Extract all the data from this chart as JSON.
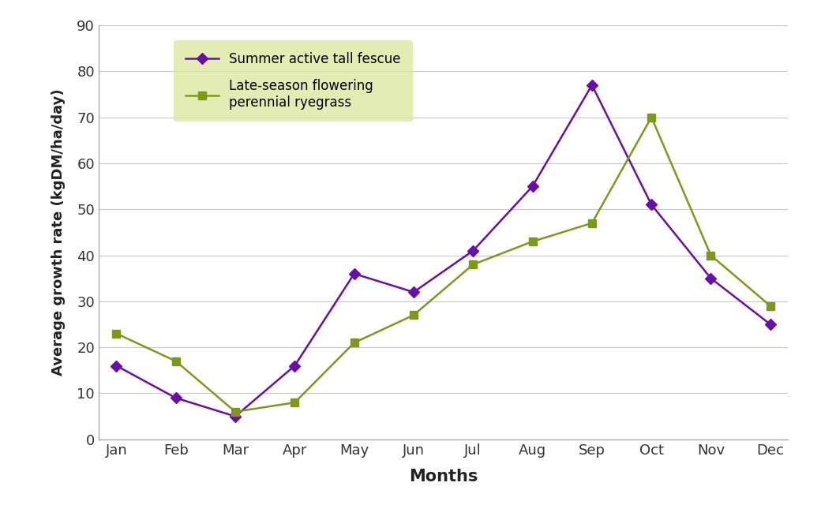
{
  "months": [
    "Jan",
    "Feb",
    "Mar",
    "Apr",
    "May",
    "Jun",
    "Jul",
    "Aug",
    "Sep",
    "Oct",
    "Nov",
    "Dec"
  ],
  "tall_fescue": [
    16,
    9,
    5,
    16,
    36,
    32,
    41,
    55,
    77,
    51,
    35,
    25
  ],
  "perennial_ryegrass": [
    23,
    17,
    6,
    8,
    21,
    27,
    38,
    43,
    47,
    70,
    40,
    29
  ],
  "fescue_color": "#6a0dad",
  "ryegrass_color": "#7b9a1a",
  "fescue_label": "Summer active tall fescue",
  "ryegrass_label": "Late-season flowering\nperennial ryegrass",
  "xlabel": "Months",
  "ylabel": "Average growth rate (kgDM/ha/day)",
  "ylim": [
    0,
    90
  ],
  "yticks": [
    0,
    10,
    20,
    30,
    40,
    50,
    60,
    70,
    80,
    90
  ],
  "background_color": "#ffffff",
  "legend_bg": "#dde8a0",
  "grid_color": "#c8c8c8",
  "spine_color": "#aaaaaa"
}
